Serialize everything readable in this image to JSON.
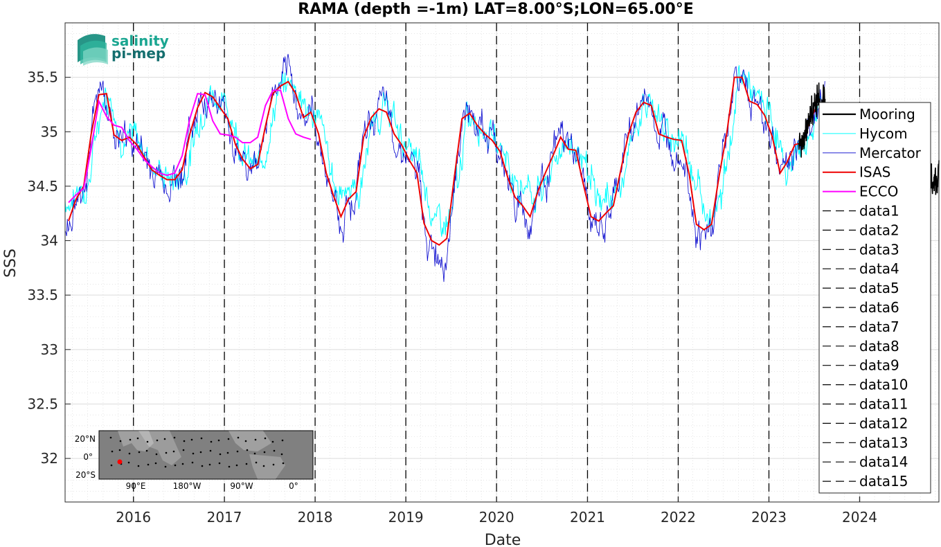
{
  "chart_data": {
    "type": "line",
    "title": "RAMA (depth =-1m) LAT=8.00°S;LON=65.00°E",
    "xlabel": "Date",
    "ylabel": "SSS",
    "xlim": [
      "2015-04-01",
      "2024-11-15"
    ],
    "ylim": [
      31.6,
      36.0
    ],
    "y_ticks": [
      "32",
      "32.5",
      "33",
      "33.5",
      "34",
      "34.5",
      "35",
      "35.5"
    ],
    "x_ticks": [
      "2016",
      "2017",
      "2018",
      "2019",
      "2020",
      "2021",
      "2022",
      "2023",
      "2024"
    ],
    "grid": true,
    "legend_position": "right",
    "legend": [
      "Mooring",
      "Hycom",
      "Mercator",
      "ISAS",
      "ECCO",
      "data1",
      "data2",
      "data3",
      "data4",
      "data5",
      "data6",
      "data7",
      "data8",
      "data9",
      "data10",
      "data11",
      "data12",
      "data13",
      "data14",
      "data15"
    ],
    "vertical_dashed_lines": [
      "2016-01-01",
      "2017-01-01",
      "2018-01-01",
      "2019-01-01",
      "2020-01-01",
      "2021-01-01",
      "2022-01-01",
      "2023-01-01",
      "2024-01-01"
    ],
    "colors": {
      "Mooring": "#000000",
      "Hycom": "#00ffff",
      "Mercator": "#0000cd",
      "ISAS": "#ee0000",
      "ECCO": "#ff00ff",
      "dashed": "#000000"
    },
    "series": [
      {
        "name": "ISAS",
        "x": [
          "2015-04-15",
          "2015-05-15",
          "2015-06-15",
          "2015-07-15",
          "2015-08-15",
          "2015-09-15",
          "2015-10-15",
          "2015-11-15",
          "2015-12-15",
          "2016-01-15",
          "2016-02-15",
          "2016-03-15",
          "2016-04-15",
          "2016-05-15",
          "2016-06-15",
          "2016-07-15",
          "2016-08-15",
          "2016-09-15",
          "2016-10-15",
          "2016-11-15",
          "2016-12-15",
          "2017-01-15",
          "2017-02-15",
          "2017-03-15",
          "2017-04-15",
          "2017-05-15",
          "2017-06-15",
          "2017-07-15",
          "2017-08-15",
          "2017-09-15",
          "2017-10-15",
          "2017-11-15",
          "2017-12-15",
          "2018-01-15",
          "2018-02-15",
          "2018-03-15",
          "2018-04-15",
          "2018-05-15",
          "2018-06-15",
          "2018-07-15",
          "2018-08-15",
          "2018-09-15",
          "2018-10-15",
          "2018-11-15",
          "2018-12-15",
          "2019-01-15",
          "2019-02-15",
          "2019-03-15",
          "2019-04-15",
          "2019-05-15",
          "2019-06-15",
          "2019-07-15",
          "2019-08-15",
          "2019-09-15",
          "2019-10-15",
          "2019-11-15",
          "2019-12-15",
          "2020-01-15",
          "2020-02-15",
          "2020-03-15",
          "2020-04-15",
          "2020-05-15",
          "2020-06-15",
          "2020-07-15",
          "2020-08-15",
          "2020-09-15",
          "2020-10-15",
          "2020-11-15",
          "2020-12-15",
          "2021-01-15",
          "2021-02-15",
          "2021-03-15",
          "2021-04-15",
          "2021-05-15",
          "2021-06-15",
          "2021-07-15",
          "2021-08-15",
          "2021-09-15",
          "2021-10-15",
          "2021-11-15",
          "2021-12-15",
          "2022-01-15",
          "2022-02-15",
          "2022-03-15",
          "2022-04-15",
          "2022-05-15",
          "2022-06-15",
          "2022-07-15",
          "2022-08-15",
          "2022-09-15",
          "2022-10-15",
          "2022-11-15",
          "2022-12-15",
          "2023-01-15",
          "2023-02-15",
          "2023-03-15",
          "2023-04-15",
          "2023-05-15",
          "2023-06-15",
          "2023-07-15"
        ],
        "y": [
          34.18,
          34.38,
          34.5,
          34.98,
          35.34,
          35.35,
          34.97,
          34.92,
          34.95,
          34.88,
          34.76,
          34.65,
          34.6,
          34.56,
          34.56,
          34.65,
          34.98,
          35.22,
          35.36,
          35.32,
          35.22,
          35.12,
          34.88,
          34.75,
          34.66,
          34.7,
          35.05,
          35.35,
          35.42,
          35.46,
          35.35,
          35.13,
          35.18,
          34.98,
          34.62,
          34.42,
          34.22,
          34.38,
          34.45,
          34.95,
          35.13,
          35.21,
          35.18,
          34.98,
          34.88,
          34.74,
          34.62,
          34.16,
          34.0,
          33.96,
          34.02,
          34.58,
          35.12,
          35.17,
          35.06,
          34.98,
          34.92,
          34.82,
          34.58,
          34.4,
          34.32,
          34.22,
          34.45,
          34.62,
          34.78,
          34.95,
          34.84,
          34.83,
          34.52,
          34.22,
          34.18,
          34.25,
          34.32,
          34.65,
          34.98,
          35.18,
          35.27,
          35.24,
          34.98,
          34.95,
          34.93,
          34.92,
          34.6,
          34.15,
          34.1,
          34.15,
          34.6,
          34.98,
          35.5,
          35.5,
          35.28,
          35.25,
          35.15,
          34.95,
          34.62,
          34.72,
          34.88,
          34.9,
          35.1,
          35.25
        ]
      },
      {
        "name": "ECCO",
        "x": [
          "2015-04-15",
          "2015-05-15",
          "2015-06-15",
          "2015-07-15",
          "2015-08-15",
          "2015-09-15",
          "2015-10-15",
          "2015-11-15",
          "2015-12-15",
          "2016-01-15",
          "2016-02-15",
          "2016-03-15",
          "2016-04-15",
          "2016-05-15",
          "2016-06-15",
          "2016-07-15",
          "2016-08-15",
          "2016-09-15",
          "2016-10-15",
          "2016-11-15",
          "2016-12-15",
          "2017-01-15",
          "2017-02-15",
          "2017-03-15",
          "2017-04-15",
          "2017-05-15",
          "2017-06-15",
          "2017-07-15",
          "2017-08-15",
          "2017-09-15",
          "2017-10-15",
          "2017-11-15",
          "2017-12-15"
        ],
        "y": [
          34.35,
          34.42,
          34.48,
          34.85,
          35.28,
          35.14,
          35.06,
          35.04,
          34.92,
          34.84,
          34.74,
          34.68,
          34.62,
          34.6,
          34.62,
          34.78,
          35.12,
          35.35,
          35.34,
          35.1,
          34.98,
          34.97,
          34.95,
          34.9,
          34.9,
          34.95,
          35.24,
          35.38,
          35.38,
          35.12,
          34.98,
          34.95,
          34.93
        ]
      }
    ],
    "inset_map": {
      "lat_labels": [
        "20°N",
        "0°",
        "20°S"
      ],
      "lon_labels": [
        "90°E",
        "180°W",
        "90°W",
        "0°"
      ],
      "marker": {
        "lat": -8,
        "lon": 65,
        "color": "#ff0000"
      }
    },
    "logo": {
      "line1": "salinity",
      "line2": "pi-mep"
    }
  }
}
